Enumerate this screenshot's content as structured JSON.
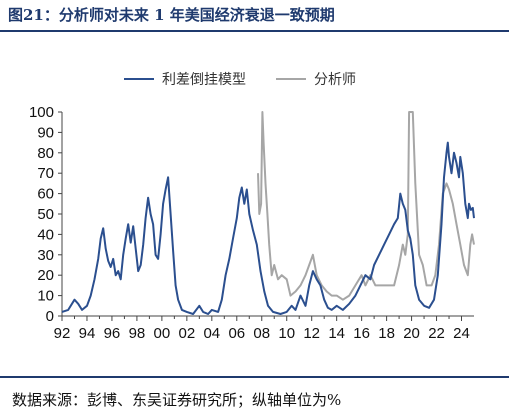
{
  "figure": {
    "title": "图21：分析师对未来 1 年美国经济衰退一致预期",
    "source": "数据来源：彭博、东吴证券研究所；纵轴单位为%"
  },
  "chart_data": {
    "type": "line",
    "ylim": [
      0,
      100
    ],
    "xlim": [
      1992,
      2025
    ],
    "y_ticks": [
      0,
      10,
      20,
      30,
      40,
      50,
      60,
      70,
      80,
      90,
      100
    ],
    "x_ticks": [
      {
        "label": "92",
        "value": 1992
      },
      {
        "label": "94",
        "value": 1994
      },
      {
        "label": "96",
        "value": 1996
      },
      {
        "label": "98",
        "value": 1998
      },
      {
        "label": "00",
        "value": 2000
      },
      {
        "label": "02",
        "value": 2002
      },
      {
        "label": "04",
        "value": 2004
      },
      {
        "label": "06",
        "value": 2006
      },
      {
        "label": "08",
        "value": 2008
      },
      {
        "label": "10",
        "value": 2010
      },
      {
        "label": "12",
        "value": 2012
      },
      {
        "label": "14",
        "value": 2014
      },
      {
        "label": "16",
        "value": 2016
      },
      {
        "label": "18",
        "value": 2018
      },
      {
        "label": "20",
        "value": 2020
      },
      {
        "label": "22",
        "value": 2022
      },
      {
        "label": "24",
        "value": 2024
      }
    ],
    "grid": false,
    "legend_position": "top-center",
    "series": [
      {
        "name": "利差倒挂模型",
        "color": "#2b4f8f",
        "points": [
          [
            1992.0,
            2
          ],
          [
            1992.5,
            3
          ],
          [
            1993.0,
            8
          ],
          [
            1993.3,
            6
          ],
          [
            1993.6,
            3
          ],
          [
            1994.0,
            5
          ],
          [
            1994.3,
            10
          ],
          [
            1994.6,
            18
          ],
          [
            1994.9,
            28
          ],
          [
            1995.1,
            38
          ],
          [
            1995.3,
            43
          ],
          [
            1995.5,
            33
          ],
          [
            1995.7,
            27
          ],
          [
            1995.9,
            24
          ],
          [
            1996.1,
            28
          ],
          [
            1996.3,
            20
          ],
          [
            1996.5,
            22
          ],
          [
            1996.7,
            18
          ],
          [
            1996.9,
            30
          ],
          [
            1997.1,
            38
          ],
          [
            1997.3,
            45
          ],
          [
            1997.5,
            36
          ],
          [
            1997.7,
            44
          ],
          [
            1997.9,
            33
          ],
          [
            1998.1,
            22
          ],
          [
            1998.3,
            25
          ],
          [
            1998.5,
            35
          ],
          [
            1998.7,
            48
          ],
          [
            1998.9,
            58
          ],
          [
            1999.1,
            50
          ],
          [
            1999.3,
            45
          ],
          [
            1999.5,
            30
          ],
          [
            1999.7,
            28
          ],
          [
            1999.9,
            40
          ],
          [
            2000.1,
            55
          ],
          [
            2000.3,
            62
          ],
          [
            2000.5,
            68
          ],
          [
            2000.7,
            50
          ],
          [
            2000.9,
            32
          ],
          [
            2001.1,
            15
          ],
          [
            2001.3,
            8
          ],
          [
            2001.6,
            3
          ],
          [
            2002.0,
            2
          ],
          [
            2002.5,
            1
          ],
          [
            2003.0,
            5
          ],
          [
            2003.3,
            2
          ],
          [
            2003.7,
            1
          ],
          [
            2004.0,
            3
          ],
          [
            2004.5,
            2
          ],
          [
            2004.8,
            8
          ],
          [
            2005.1,
            20
          ],
          [
            2005.4,
            28
          ],
          [
            2005.7,
            38
          ],
          [
            2006.0,
            48
          ],
          [
            2006.2,
            58
          ],
          [
            2006.4,
            63
          ],
          [
            2006.6,
            55
          ],
          [
            2006.8,
            62
          ],
          [
            2007.0,
            50
          ],
          [
            2007.3,
            42
          ],
          [
            2007.6,
            35
          ],
          [
            2007.9,
            22
          ],
          [
            2008.2,
            12
          ],
          [
            2008.5,
            5
          ],
          [
            2008.9,
            2
          ],
          [
            2009.5,
            1
          ],
          [
            2010.0,
            2
          ],
          [
            2010.4,
            5
          ],
          [
            2010.7,
            3
          ],
          [
            2011.1,
            10
          ],
          [
            2011.5,
            5
          ],
          [
            2011.8,
            15
          ],
          [
            2012.1,
            22
          ],
          [
            2012.4,
            18
          ],
          [
            2012.7,
            15
          ],
          [
            2013.0,
            8
          ],
          [
            2013.3,
            4
          ],
          [
            2013.6,
            3
          ],
          [
            2014.0,
            5
          ],
          [
            2014.5,
            3
          ],
          [
            2015.0,
            6
          ],
          [
            2015.5,
            10
          ],
          [
            2015.9,
            15
          ],
          [
            2016.3,
            20
          ],
          [
            2016.7,
            18
          ],
          [
            2017.0,
            25
          ],
          [
            2017.4,
            30
          ],
          [
            2017.8,
            35
          ],
          [
            2018.2,
            40
          ],
          [
            2018.6,
            45
          ],
          [
            2018.9,
            48
          ],
          [
            2019.1,
            60
          ],
          [
            2019.3,
            55
          ],
          [
            2019.5,
            52
          ],
          [
            2019.7,
            42
          ],
          [
            2019.9,
            38
          ],
          [
            2020.1,
            30
          ],
          [
            2020.3,
            15
          ],
          [
            2020.6,
            8
          ],
          [
            2021.0,
            5
          ],
          [
            2021.4,
            4
          ],
          [
            2021.8,
            8
          ],
          [
            2022.1,
            20
          ],
          [
            2022.4,
            45
          ],
          [
            2022.6,
            68
          ],
          [
            2022.8,
            80
          ],
          [
            2022.9,
            85
          ],
          [
            2023.0,
            78
          ],
          [
            2023.2,
            70
          ],
          [
            2023.4,
            80
          ],
          [
            2023.6,
            75
          ],
          [
            2023.8,
            68
          ],
          [
            2023.9,
            78
          ],
          [
            2024.1,
            70
          ],
          [
            2024.3,
            55
          ],
          [
            2024.5,
            48
          ],
          [
            2024.6,
            55
          ],
          [
            2024.75,
            52
          ],
          [
            2024.9,
            53
          ],
          [
            2025.0,
            48
          ]
        ]
      },
      {
        "name": "分析师",
        "color": "#a6a6a6",
        "points": [
          [
            2007.7,
            70
          ],
          [
            2007.8,
            50
          ],
          [
            2007.95,
            55
          ],
          [
            2008.05,
            100
          ],
          [
            2008.15,
            85
          ],
          [
            2008.3,
            65
          ],
          [
            2008.45,
            50
          ],
          [
            2008.6,
            35
          ],
          [
            2008.8,
            20
          ],
          [
            2009.0,
            25
          ],
          [
            2009.3,
            18
          ],
          [
            2009.6,
            20
          ],
          [
            2010.0,
            18
          ],
          [
            2010.3,
            10
          ],
          [
            2010.7,
            12
          ],
          [
            2011.1,
            15
          ],
          [
            2011.5,
            20
          ],
          [
            2011.8,
            25
          ],
          [
            2012.1,
            30
          ],
          [
            2012.4,
            20
          ],
          [
            2012.8,
            15
          ],
          [
            2013.2,
            12
          ],
          [
            2013.6,
            10
          ],
          [
            2014.0,
            10
          ],
          [
            2014.5,
            8
          ],
          [
            2015.0,
            10
          ],
          [
            2015.5,
            15
          ],
          [
            2016.0,
            20
          ],
          [
            2016.3,
            15
          ],
          [
            2016.7,
            20
          ],
          [
            2017.1,
            15
          ],
          [
            2017.6,
            15
          ],
          [
            2018.1,
            15
          ],
          [
            2018.6,
            15
          ],
          [
            2019.0,
            25
          ],
          [
            2019.3,
            35
          ],
          [
            2019.5,
            30
          ],
          [
            2019.7,
            40
          ],
          [
            2019.8,
            100
          ],
          [
            2020.1,
            100
          ],
          [
            2020.3,
            65
          ],
          [
            2020.6,
            30
          ],
          [
            2020.9,
            25
          ],
          [
            2021.2,
            15
          ],
          [
            2021.6,
            15
          ],
          [
            2021.9,
            20
          ],
          [
            2022.2,
            35
          ],
          [
            2022.5,
            60
          ],
          [
            2022.8,
            65
          ],
          [
            2023.0,
            62
          ],
          [
            2023.3,
            55
          ],
          [
            2023.6,
            45
          ],
          [
            2023.9,
            35
          ],
          [
            2024.2,
            25
          ],
          [
            2024.5,
            20
          ],
          [
            2024.7,
            35
          ],
          [
            2024.85,
            40
          ],
          [
            2025.0,
            35
          ]
        ]
      }
    ]
  }
}
